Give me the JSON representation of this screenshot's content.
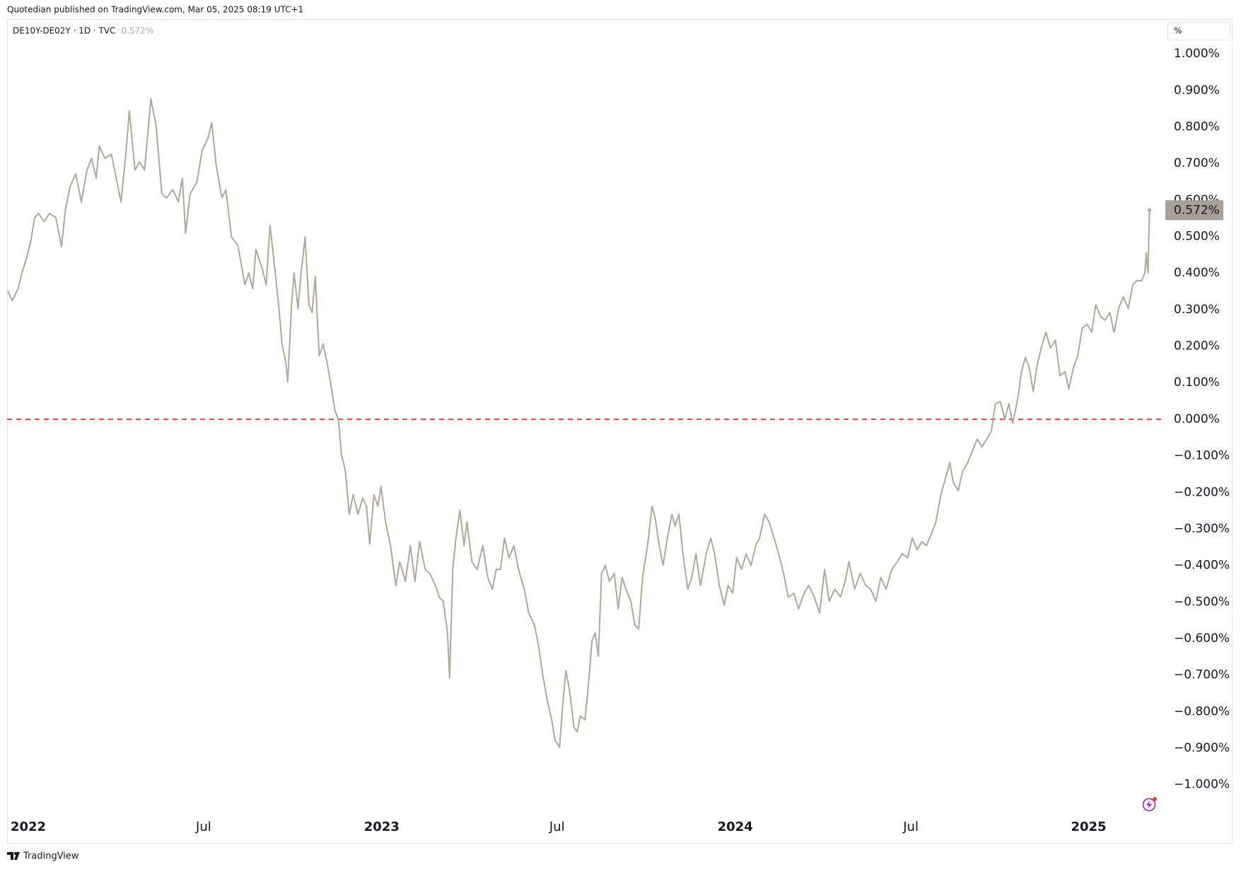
{
  "header": {
    "publisher": "Quotedian published on TradingView.com, Mar 05, 2025 08:19 UTC+1",
    "footer": "TradingView"
  },
  "chart_data": {
    "type": "line",
    "unit_label": "%",
    "last_value_label": "0.572%",
    "x": [
      2021.942,
      2021.955,
      2021.971,
      2021.982,
      2021.996,
      2022.007,
      2022.018,
      2022.029,
      2022.045,
      2022.06,
      2022.078,
      2022.094,
      2022.105,
      2022.119,
      2022.134,
      2022.15,
      2022.166,
      2022.179,
      2022.192,
      2022.201,
      2022.217,
      2022.235,
      2022.253,
      2022.262,
      2022.275,
      2022.286,
      2022.302,
      2022.315,
      2022.329,
      2022.347,
      2022.362,
      2022.378,
      2022.391,
      2022.409,
      2022.425,
      2022.436,
      2022.445,
      2022.458,
      2022.477,
      2022.492,
      2022.508,
      2022.519,
      2022.532,
      2022.548,
      2022.559,
      2022.575,
      2022.593,
      2022.613,
      2022.624,
      2022.635,
      2022.644,
      2022.662,
      2022.673,
      2022.684,
      2022.695,
      2022.707,
      2022.718,
      2022.729,
      2022.734,
      2022.745,
      2022.752,
      2022.763,
      2022.772,
      2022.783,
      2022.794,
      2022.803,
      2022.812,
      2022.823,
      2022.834,
      2022.846,
      2022.857,
      2022.868,
      2022.877,
      2022.886,
      2022.897,
      2022.908,
      2022.919,
      2022.933,
      2022.946,
      2022.957,
      2022.966,
      2022.978,
      2022.989,
      2022.998,
      2023.011,
      2023.025,
      2023.04,
      2023.051,
      2023.067,
      2023.081,
      2023.094,
      2023.107,
      2023.123,
      2023.136,
      2023.152,
      2023.163,
      2023.174,
      2023.186,
      2023.192,
      2023.201,
      2023.21,
      2023.221,
      2023.233,
      2023.241,
      2023.255,
      2023.27,
      2023.286,
      2023.3,
      2023.313,
      2023.324,
      2023.336,
      2023.347,
      2023.36,
      2023.374,
      2023.387,
      2023.403,
      2023.416,
      2023.432,
      2023.445,
      2023.456,
      2023.468,
      2023.481,
      2023.49,
      2023.503,
      2023.512,
      2023.521,
      2023.532,
      2023.544,
      2023.553,
      2023.562,
      2023.575,
      2023.584,
      2023.595,
      2023.604,
      2023.613,
      2023.622,
      2023.633,
      2023.644,
      2023.658,
      2023.669,
      2023.68,
      2023.691,
      2023.705,
      2023.716,
      2023.727,
      2023.738,
      2023.752,
      2023.765,
      2023.774,
      2023.785,
      2023.796,
      2023.808,
      2023.821,
      2023.83,
      2023.841,
      2023.852,
      2023.866,
      2023.877,
      2023.889,
      2023.902,
      2023.918,
      2023.931,
      2023.942,
      2023.955,
      2023.969,
      2023.98,
      2023.993,
      2024.004,
      2024.018,
      2024.031,
      2024.045,
      2024.058,
      2024.069,
      2024.083,
      2024.096,
      2024.11,
      2024.123,
      2024.137,
      2024.15,
      2024.166,
      2024.179,
      2024.195,
      2024.208,
      2024.224,
      2024.239,
      2024.253,
      2024.266,
      2024.282,
      2024.298,
      2024.311,
      2024.322,
      2024.338,
      2024.354,
      2024.369,
      2024.383,
      2024.398,
      2024.412,
      2024.427,
      2024.443,
      2024.459,
      2024.472,
      2024.488,
      2024.501,
      2024.515,
      2024.528,
      2024.541,
      2024.555,
      2024.568,
      2024.582,
      2024.595,
      2024.607,
      2024.617,
      2024.631,
      2024.644,
      2024.658,
      2024.671,
      2024.685,
      2024.698,
      2024.712,
      2024.725,
      2024.736,
      2024.75,
      2024.763,
      2024.774,
      2024.785,
      2024.799,
      2024.81,
      2024.821,
      2024.832,
      2024.843,
      2024.855,
      2024.866,
      2024.879,
      2024.892,
      2024.906,
      2024.919,
      2024.933,
      2024.944,
      2024.957,
      2024.969,
      2024.982,
      2024.996,
      2025.009,
      2025.02,
      2025.034,
      2025.047,
      2025.06,
      2025.072,
      2025.085,
      2025.098,
      2025.112,
      2025.125,
      2025.136,
      2025.15,
      2025.159,
      2025.163,
      2025.168,
      2025.172
    ],
    "series": [
      {
        "name": "DE10Y-DE02Y · 1D · TVC",
        "color": "#b0a79c",
        "values": [
          0.351,
          0.325,
          0.357,
          0.4,
          0.444,
          0.487,
          0.552,
          0.563,
          0.541,
          0.563,
          0.552,
          0.472,
          0.574,
          0.639,
          0.671,
          0.595,
          0.682,
          0.714,
          0.66,
          0.747,
          0.714,
          0.725,
          0.639,
          0.595,
          0.714,
          0.844,
          0.682,
          0.704,
          0.682,
          0.877,
          0.801,
          0.617,
          0.606,
          0.628,
          0.595,
          0.66,
          0.509,
          0.617,
          0.649,
          0.736,
          0.768,
          0.812,
          0.693,
          0.606,
          0.628,
          0.498,
          0.476,
          0.368,
          0.4,
          0.357,
          0.465,
          0.411,
          0.368,
          0.53,
          0.433,
          0.325,
          0.206,
          0.152,
          0.102,
          0.314,
          0.4,
          0.303,
          0.4,
          0.498,
          0.314,
          0.292,
          0.39,
          0.173,
          0.206,
          0.152,
          0.087,
          0.022,
          0.0,
          -0.097,
          -0.141,
          -0.26,
          -0.206,
          -0.26,
          -0.216,
          -0.238,
          -0.342,
          -0.206,
          -0.238,
          -0.184,
          -0.281,
          -0.346,
          -0.455,
          -0.39,
          -0.444,
          -0.346,
          -0.444,
          -0.335,
          -0.411,
          -0.422,
          -0.455,
          -0.487,
          -0.498,
          -0.584,
          -0.708,
          -0.411,
          -0.325,
          -0.249,
          -0.346,
          -0.281,
          -0.39,
          -0.411,
          -0.346,
          -0.433,
          -0.465,
          -0.411,
          -0.411,
          -0.325,
          -0.379,
          -0.346,
          -0.411,
          -0.465,
          -0.53,
          -0.563,
          -0.628,
          -0.703,
          -0.768,
          -0.823,
          -0.877,
          -0.898,
          -0.779,
          -0.688,
          -0.747,
          -0.844,
          -0.855,
          -0.812,
          -0.823,
          -0.736,
          -0.606,
          -0.584,
          -0.649,
          -0.422,
          -0.4,
          -0.444,
          -0.422,
          -0.519,
          -0.433,
          -0.465,
          -0.498,
          -0.563,
          -0.574,
          -0.433,
          -0.346,
          -0.238,
          -0.271,
          -0.346,
          -0.4,
          -0.325,
          -0.26,
          -0.292,
          -0.26,
          -0.368,
          -0.465,
          -0.433,
          -0.368,
          -0.455,
          -0.368,
          -0.325,
          -0.368,
          -0.455,
          -0.509,
          -0.455,
          -0.476,
          -0.379,
          -0.411,
          -0.368,
          -0.4,
          -0.346,
          -0.325,
          -0.26,
          -0.281,
          -0.325,
          -0.368,
          -0.422,
          -0.487,
          -0.476,
          -0.519,
          -0.476,
          -0.455,
          -0.487,
          -0.53,
          -0.411,
          -0.498,
          -0.465,
          -0.487,
          -0.444,
          -0.39,
          -0.465,
          -0.422,
          -0.455,
          -0.465,
          -0.498,
          -0.433,
          -0.465,
          -0.411,
          -0.39,
          -0.368,
          -0.379,
          -0.325,
          -0.357,
          -0.335,
          -0.346,
          -0.314,
          -0.281,
          -0.206,
          -0.162,
          -0.119,
          -0.173,
          -0.195,
          -0.141,
          -0.119,
          -0.087,
          -0.054,
          -0.076,
          -0.054,
          -0.032,
          0.043,
          0.048,
          0.0,
          0.043,
          -0.011,
          0.054,
          0.13,
          0.169,
          0.141,
          0.076,
          0.152,
          0.195,
          0.238,
          0.195,
          0.216,
          0.119,
          0.13,
          0.082,
          0.141,
          0.173,
          0.249,
          0.26,
          0.238,
          0.314,
          0.281,
          0.271,
          0.292,
          0.238,
          0.303,
          0.335,
          0.303,
          0.368,
          0.379,
          0.379,
          0.4,
          0.455,
          0.4,
          0.572
        ]
      }
    ],
    "hline": {
      "value": 0,
      "color": "#d32030"
    },
    "xlim": [
      2021.94,
      2025.215
    ],
    "xticks": [
      {
        "value": 2022,
        "label": "2022"
      },
      {
        "value": 2022.496,
        "label": "Jul"
      },
      {
        "value": 2023,
        "label": "2023"
      },
      {
        "value": 2023.496,
        "label": "Jul"
      },
      {
        "value": 2024,
        "label": "2024"
      },
      {
        "value": 2024.497,
        "label": "Jul"
      },
      {
        "value": 2025,
        "label": "2025"
      }
    ],
    "ylim": [
      -1.078,
      1.095
    ],
    "yticks": [
      {
        "value": 1.0,
        "label": "1.000%"
      },
      {
        "value": 0.9,
        "label": "0.900%"
      },
      {
        "value": 0.8,
        "label": "0.800%"
      },
      {
        "value": 0.7,
        "label": "0.700%"
      },
      {
        "value": 0.6,
        "label": "0.600%"
      },
      {
        "value": 0.5,
        "label": "0.500%"
      },
      {
        "value": 0.4,
        "label": "0.400%"
      },
      {
        "value": 0.3,
        "label": "0.300%"
      },
      {
        "value": 0.2,
        "label": "0.200%"
      },
      {
        "value": 0.1,
        "label": "0.100%"
      },
      {
        "value": 0,
        "label": "0.000%"
      },
      {
        "value": -0.1,
        "label": "−0.100%"
      },
      {
        "value": -0.2,
        "label": "−0.200%"
      },
      {
        "value": -0.3,
        "label": "−0.300%"
      },
      {
        "value": -0.4,
        "label": "−0.400%"
      },
      {
        "value": -0.5,
        "label": "−0.500%"
      },
      {
        "value": -0.6,
        "label": "−0.600%"
      },
      {
        "value": -0.7,
        "label": "−0.700%"
      },
      {
        "value": -0.8,
        "label": "−0.800%"
      },
      {
        "value": -0.9,
        "label": "−0.900%"
      },
      {
        "value": -1.0,
        "label": "−1.000%"
      }
    ]
  }
}
